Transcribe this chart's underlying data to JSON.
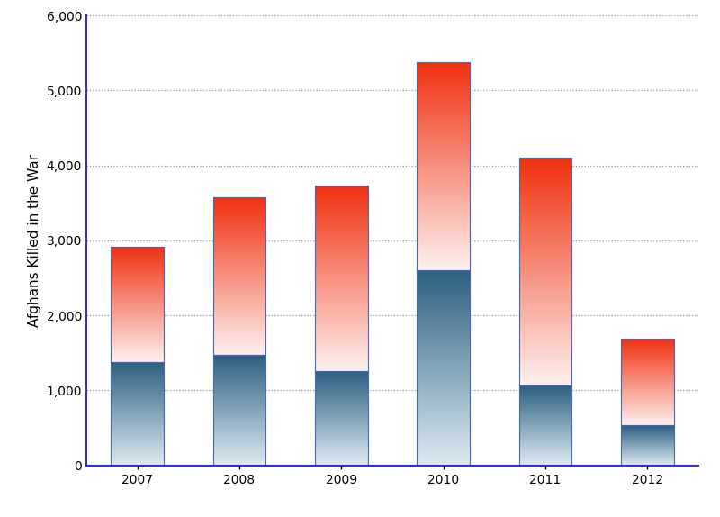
{
  "years": [
    2007,
    2008,
    2009,
    2010,
    2011,
    2012
  ],
  "security_forces": [
    1380,
    1470,
    1260,
    2600,
    1060,
    530
  ],
  "total": [
    2920,
    3580,
    3730,
    5380,
    4100,
    1690
  ],
  "ylim": [
    0,
    6000
  ],
  "yticks": [
    0,
    1000,
    2000,
    3000,
    4000,
    5000,
    6000
  ],
  "ylabel": "Afghans Killed in the War",
  "bar_width": 0.52,
  "blue_top_color": "#2c5f80",
  "blue_bottom_color": "#ddeaf2",
  "orange_top_color": "#f03010",
  "orange_bottom_color": "#fdf0ee",
  "bar_outline_color": "#4466bb",
  "axis_color": "#3333bb",
  "grid_color": "#8899cc",
  "background_color": "#ffffff",
  "label_fontsize": 11,
  "tick_fontsize": 10,
  "figsize": [
    8.0,
    5.74
  ],
  "dpi": 100
}
